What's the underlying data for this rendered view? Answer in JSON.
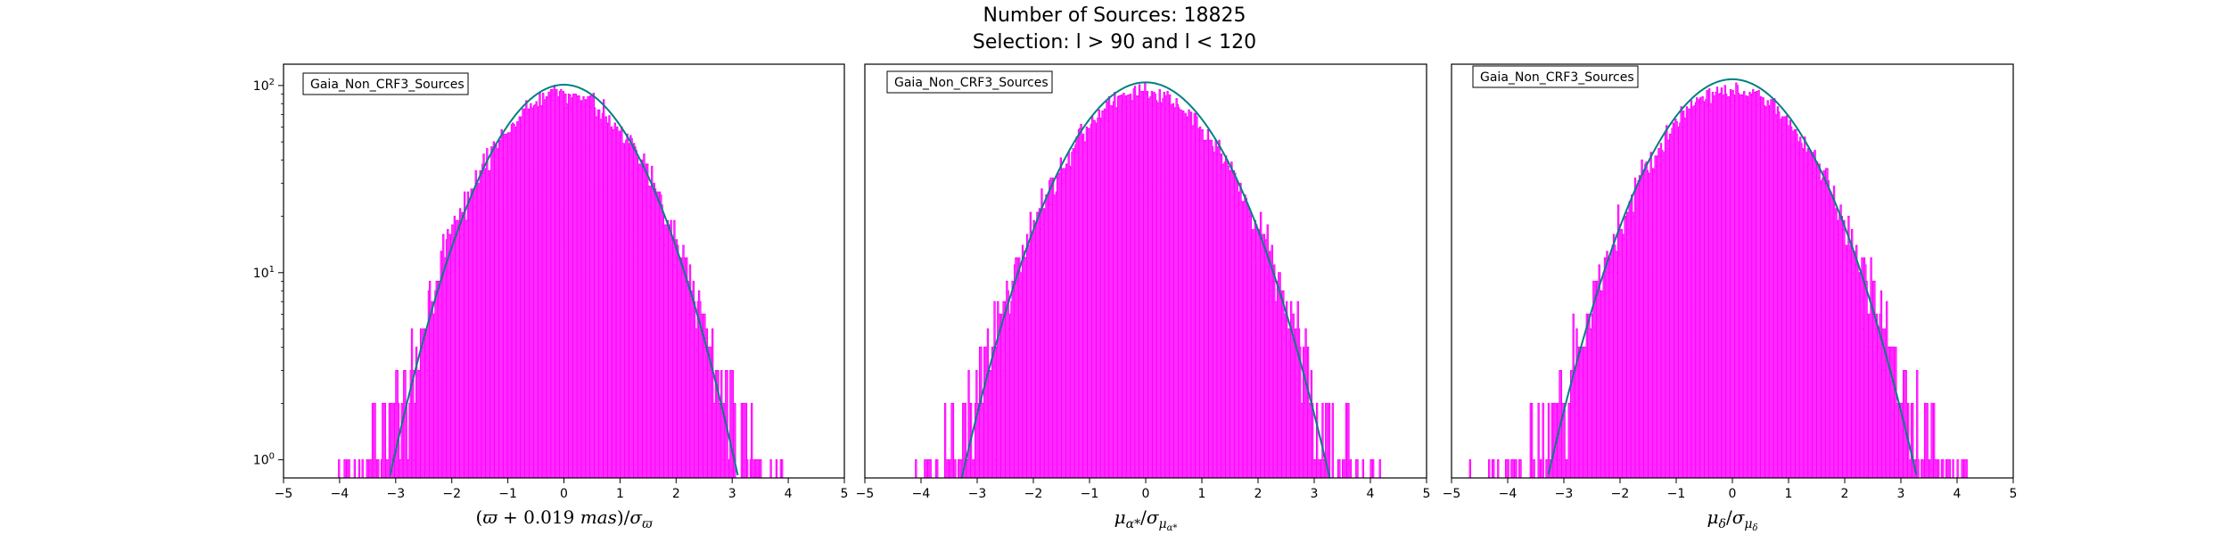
{
  "figure": {
    "title_line1": "Number of Sources: 18825",
    "title_line2": "Selection: l > 90 and l < 120"
  },
  "colors": {
    "histogram": "#ff00ff",
    "gaussian": "#008080",
    "axes": "#000000",
    "background": "#ffffff"
  },
  "chart_data": [
    {
      "type": "histogram",
      "panel": "left",
      "legend": "Gaia_Non_CRF3_Sources",
      "xlabel": "(ϖ + 0.019 mas)/σ_ϖ",
      "xlim": [
        -5,
        5
      ],
      "ylim": [
        0.8,
        130
      ],
      "yscale": "log",
      "xticks": [
        "−5",
        "−4",
        "−3",
        "−2",
        "−1",
        "0",
        "1",
        "2",
        "3",
        "4",
        "5"
      ],
      "yticks": [
        {
          "exp": "0",
          "v": 1
        },
        {
          "exp": "1",
          "v": 10
        },
        {
          "exp": "2",
          "v": 100
        }
      ],
      "gaussian": {
        "amplitude": 101,
        "mean": 0,
        "sigma": 1
      },
      "histogram": {
        "peak": 88,
        "width": 1.05,
        "xmin": -4.8,
        "xmax": 4.6,
        "nbins": 470
      }
    },
    {
      "type": "histogram",
      "panel": "middle",
      "legend": "Gaia_Non_CRF3_Sources",
      "xlabel": "μ_α*/σ_μα*",
      "xlim": [
        -5,
        5
      ],
      "ylim": [
        0.8,
        130
      ],
      "yscale": "log",
      "xticks": [
        "−5",
        "−4",
        "−3",
        "−2",
        "−1",
        "0",
        "1",
        "2",
        "3",
        "4",
        "5"
      ],
      "gaussian": {
        "amplitude": 104,
        "mean": 0,
        "sigma": 1.05
      },
      "histogram": {
        "peak": 90,
        "width": 1.1,
        "xmin": -4.9,
        "xmax": 4.9,
        "nbins": 490
      }
    },
    {
      "type": "histogram",
      "panel": "right",
      "legend": "Gaia_Non_CRF3_Sources",
      "xlabel": "μ_δ/σ_μδ",
      "xlim": [
        -5,
        5
      ],
      "ylim": [
        0.8,
        130
      ],
      "yscale": "log",
      "xticks": [
        "−5",
        "−4",
        "−3",
        "−2",
        "−1",
        "0",
        "1",
        "2",
        "3",
        "4",
        "5"
      ],
      "gaussian": {
        "amplitude": 108,
        "mean": 0,
        "sigma": 1.05
      },
      "histogram": {
        "peak": 92,
        "width": 1.1,
        "xmin": -4.9,
        "xmax": 4.9,
        "nbins": 490
      }
    }
  ]
}
